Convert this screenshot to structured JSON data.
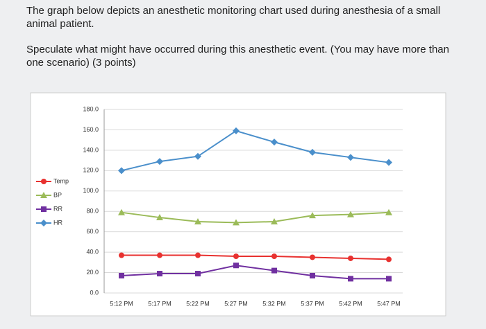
{
  "question": {
    "intro": "The graph below depicts an anesthetic monitoring chart used during anesthesia of a small animal patient.",
    "prompt": "Speculate what might have occurred during this anesthetic event. (You may have more than one scenario) (3 points)"
  },
  "chart_data": {
    "type": "line",
    "categories": [
      "5:12 PM",
      "5:17 PM",
      "5:22 PM",
      "5:27 PM",
      "5:32 PM",
      "5:37 PM",
      "5:42 PM",
      "5:47 PM"
    ],
    "series": [
      {
        "name": "Temp",
        "color": "#e8312f",
        "marker": "circle",
        "values": [
          37,
          37,
          37,
          36,
          36,
          35,
          34,
          33
        ]
      },
      {
        "name": "BP",
        "color": "#9bbb59",
        "marker": "triangle",
        "values": [
          79,
          74,
          70,
          69,
          70,
          76,
          77,
          79
        ]
      },
      {
        "name": "RR",
        "color": "#7030a0",
        "marker": "square",
        "values": [
          17,
          19,
          19,
          27,
          22,
          17,
          14,
          14
        ]
      },
      {
        "name": "HR",
        "color": "#4a8fcb",
        "marker": "diamond",
        "values": [
          120,
          129,
          134,
          159,
          148,
          138,
          133,
          128
        ]
      }
    ],
    "ylim": [
      0,
      180
    ],
    "yticks": [
      {
        "value": 0,
        "label": "0.0"
      },
      {
        "value": 20,
        "label": "20.0"
      },
      {
        "value": 40,
        "label": "40.0"
      },
      {
        "value": 60,
        "label": "60.0"
      },
      {
        "value": 80,
        "label": "80.0"
      },
      {
        "value": 100,
        "label": "100.0"
      },
      {
        "value": 120,
        "label": "120.0"
      },
      {
        "value": 140,
        "label": "140.0"
      },
      {
        "value": 160,
        "label": "160.0"
      },
      {
        "value": 180,
        "label": "180.0"
      }
    ],
    "grid": true,
    "legend": "left"
  }
}
